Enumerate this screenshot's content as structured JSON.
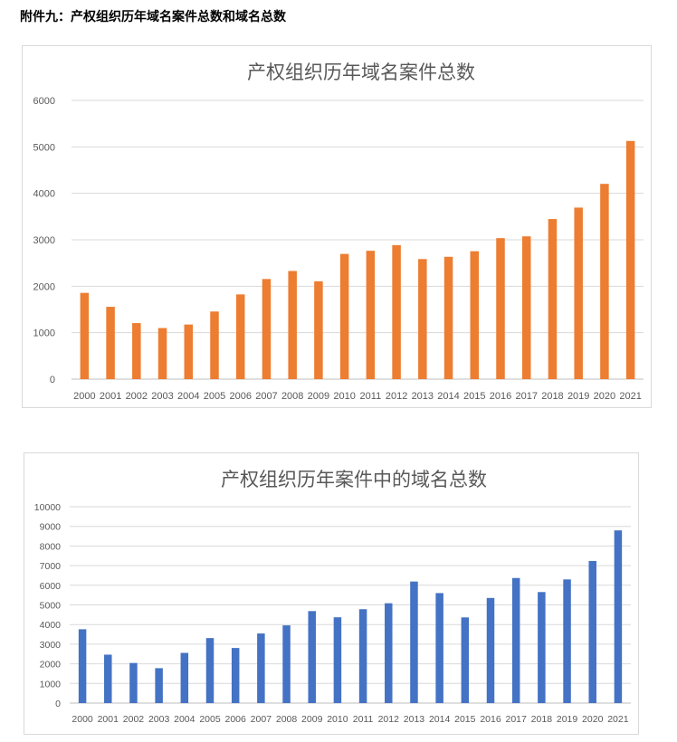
{
  "heading": "附件九：产权组织历年域名案件总数和域名总数",
  "chart_data": [
    {
      "type": "bar",
      "title": "产权组织历年域名案件总数",
      "color": "#ED7D31",
      "categories": [
        "2000",
        "2001",
        "2002",
        "2003",
        "2004",
        "2005",
        "2006",
        "2007",
        "2008",
        "2009",
        "2010",
        "2011",
        "2012",
        "2013",
        "2014",
        "2015",
        "2016",
        "2017",
        "2018",
        "2019",
        "2020",
        "2021"
      ],
      "values": [
        1857,
        1557,
        1207,
        1100,
        1176,
        1456,
        1824,
        2156,
        2329,
        2107,
        2696,
        2764,
        2884,
        2585,
        2634,
        2754,
        3036,
        3074,
        3447,
        3693,
        4204,
        5128
      ],
      "ylim": [
        0,
        6000
      ],
      "yticks": [
        "0",
        "1000",
        "2000",
        "3000",
        "4000",
        "5000",
        "6000"
      ],
      "grid": true
    },
    {
      "type": "bar",
      "title": "产权组织历年案件中的域名总数",
      "color": "#4472C4",
      "categories": [
        "2000",
        "2001",
        "2002",
        "2003",
        "2004",
        "2005",
        "2006",
        "2007",
        "2008",
        "2009",
        "2010",
        "2011",
        "2012",
        "2013",
        "2014",
        "2015",
        "2016",
        "2017",
        "2018",
        "2019",
        "2020",
        "2021"
      ],
      "values": [
        3760,
        2467,
        2042,
        1778,
        2557,
        3312,
        2806,
        3545,
        3958,
        4685,
        4370,
        4781,
        5084,
        6191,
        5603,
        4364,
        5354,
        6370,
        5655,
        6298,
        7238,
        8795
      ],
      "ylim": [
        0,
        10000
      ],
      "yticks": [
        "0",
        "1000",
        "2000",
        "3000",
        "4000",
        "5000",
        "6000",
        "7000",
        "8000",
        "9000",
        "10000"
      ],
      "grid": true
    }
  ]
}
